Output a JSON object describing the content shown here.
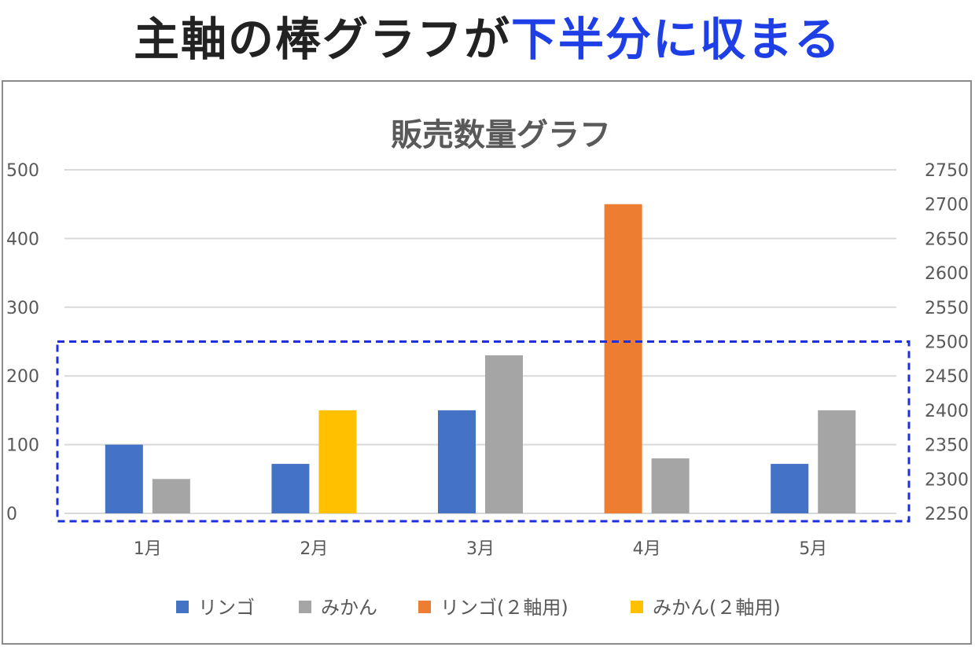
{
  "headline": {
    "part1": "主軸の棒グラフが",
    "part2": "下半分に収まる"
  },
  "colors": {
    "apple": "#4472c4",
    "orange": "#a5a5a5",
    "apple_secondary": "#ed7d31",
    "orange_secondary": "#ffc000",
    "highlight_box": "#1f2fe0"
  },
  "chart_data": {
    "type": "bar",
    "title": "販売数量グラフ",
    "categories": [
      "1月",
      "2月",
      "3月",
      "4月",
      "5月"
    ],
    "primary_axis": {
      "ylim": [
        0,
        500
      ],
      "ticks": [
        "0",
        "100",
        "200",
        "300",
        "400",
        "500"
      ]
    },
    "secondary_axis": {
      "ylim": [
        2250,
        2750
      ],
      "ticks": [
        "2250",
        "2300",
        "2350",
        "2400",
        "2450",
        "2500",
        "2550",
        "2600",
        "2650",
        "2700",
        "2750"
      ]
    },
    "series": [
      {
        "name": "リンゴ",
        "axis": "primary",
        "values": [
          100,
          72,
          150,
          null,
          72
        ]
      },
      {
        "name": "みかん",
        "axis": "primary",
        "values": [
          50,
          null,
          230,
          80,
          150
        ]
      },
      {
        "name": "リンゴ(２軸用)",
        "axis": "secondary",
        "values": [
          null,
          null,
          null,
          2700,
          null
        ]
      },
      {
        "name": "みかん(２軸用)",
        "axis": "secondary",
        "values": [
          null,
          2400,
          null,
          null,
          null
        ]
      }
    ],
    "grid": true,
    "legend_position": "bottom",
    "highlight_range_primary": [
      0,
      250
    ]
  }
}
